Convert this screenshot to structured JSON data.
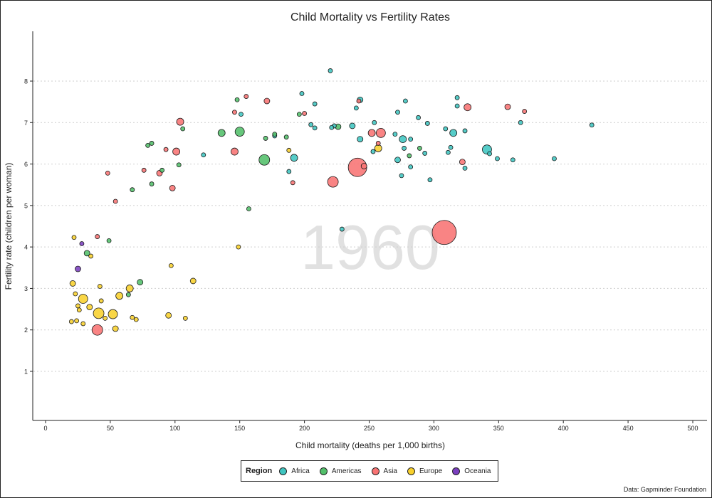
{
  "chart_data": {
    "type": "scatter",
    "title": "Child Mortality vs Fertility Rates",
    "xlabel": "Child mortality (deaths per 1,000 births)",
    "ylabel": "Fertility rate (children per woman)",
    "xlim": [
      -10,
      510
    ],
    "ylim": [
      0,
      9.3
    ],
    "xticks": [
      0,
      50,
      100,
      150,
      200,
      250,
      300,
      350,
      400,
      450,
      500
    ],
    "yticks": [
      1,
      2,
      3,
      4,
      5,
      6,
      7,
      8
    ],
    "grid": "horizontal dotted",
    "year_label": "1960",
    "size_encoding": "population (relative)",
    "legend": {
      "title": "Region",
      "position": "bottom",
      "entries": [
        {
          "name": "Africa",
          "color": "#3fc5c0"
        },
        {
          "name": "Americas",
          "color": "#52bf6a"
        },
        {
          "name": "Asia",
          "color": "#f87373"
        },
        {
          "name": "Europe",
          "color": "#f8d02c"
        },
        {
          "name": "Oceania",
          "color": "#7a3fbe"
        }
      ]
    },
    "source_note": "Data: Gapminder Foundation",
    "series": [
      {
        "name": "Africa",
        "color": "#3fc5c0",
        "points": [
          {
            "x": 220,
            "y": 8.25,
            "s": 1
          },
          {
            "x": 198,
            "y": 7.7,
            "s": 1
          },
          {
            "x": 318,
            "y": 7.6,
            "s": 1
          },
          {
            "x": 243,
            "y": 7.55,
            "s": 2
          },
          {
            "x": 278,
            "y": 7.52,
            "s": 1
          },
          {
            "x": 208,
            "y": 7.45,
            "s": 1
          },
          {
            "x": 318,
            "y": 7.4,
            "s": 1
          },
          {
            "x": 240,
            "y": 7.35,
            "s": 1
          },
          {
            "x": 272,
            "y": 7.25,
            "s": 1
          },
          {
            "x": 151,
            "y": 7.2,
            "s": 1
          },
          {
            "x": 288,
            "y": 7.12,
            "s": 1
          },
          {
            "x": 254,
            "y": 7.0,
            "s": 1
          },
          {
            "x": 367,
            "y": 7.0,
            "s": 1
          },
          {
            "x": 295,
            "y": 6.98,
            "s": 1
          },
          {
            "x": 205,
            "y": 6.95,
            "s": 1
          },
          {
            "x": 422,
            "y": 6.94,
            "s": 1
          },
          {
            "x": 237,
            "y": 6.92,
            "s": 2
          },
          {
            "x": 223,
            "y": 6.92,
            "s": 1
          },
          {
            "x": 221,
            "y": 6.88,
            "s": 1
          },
          {
            "x": 208,
            "y": 6.87,
            "s": 1
          },
          {
            "x": 309,
            "y": 6.85,
            "s": 1
          },
          {
            "x": 324,
            "y": 6.8,
            "s": 1
          },
          {
            "x": 315,
            "y": 6.75,
            "s": 3
          },
          {
            "x": 270,
            "y": 6.72,
            "s": 1
          },
          {
            "x": 177,
            "y": 6.68,
            "s": 1
          },
          {
            "x": 243,
            "y": 6.6,
            "s": 2
          },
          {
            "x": 276,
            "y": 6.6,
            "s": 3
          },
          {
            "x": 282,
            "y": 6.6,
            "s": 1
          },
          {
            "x": 313,
            "y": 6.4,
            "s": 1
          },
          {
            "x": 341,
            "y": 6.35,
            "s": 4
          },
          {
            "x": 277,
            "y": 6.38,
            "s": 1
          },
          {
            "x": 253,
            "y": 6.3,
            "s": 1
          },
          {
            "x": 311,
            "y": 6.28,
            "s": 1
          },
          {
            "x": 293,
            "y": 6.26,
            "s": 1
          },
          {
            "x": 343,
            "y": 6.25,
            "s": 1
          },
          {
            "x": 122,
            "y": 6.22,
            "s": 1
          },
          {
            "x": 192,
            "y": 6.15,
            "s": 3
          },
          {
            "x": 349,
            "y": 6.13,
            "s": 1
          },
          {
            "x": 393,
            "y": 6.13,
            "s": 1
          },
          {
            "x": 361,
            "y": 6.1,
            "s": 1
          },
          {
            "x": 272,
            "y": 6.1,
            "s": 2
          },
          {
            "x": 282,
            "y": 5.93,
            "s": 1
          },
          {
            "x": 324,
            "y": 5.9,
            "s": 1
          },
          {
            "x": 188,
            "y": 5.82,
            "s": 1
          },
          {
            "x": 275,
            "y": 5.72,
            "s": 1
          },
          {
            "x": 297,
            "y": 5.62,
            "s": 1
          },
          {
            "x": 229,
            "y": 4.43,
            "s": 1
          }
        ]
      },
      {
        "name": "Americas",
        "color": "#52bf6a",
        "points": [
          {
            "x": 148,
            "y": 7.55,
            "s": 1
          },
          {
            "x": 196,
            "y": 7.2,
            "s": 1
          },
          {
            "x": 150,
            "y": 6.78,
            "s": 4
          },
          {
            "x": 136,
            "y": 6.75,
            "s": 3
          },
          {
            "x": 226,
            "y": 6.9,
            "s": 2
          },
          {
            "x": 106,
            "y": 6.85,
            "s": 1
          },
          {
            "x": 177,
            "y": 6.72,
            "s": 1
          },
          {
            "x": 186,
            "y": 6.65,
            "s": 1
          },
          {
            "x": 170,
            "y": 6.62,
            "s": 1
          },
          {
            "x": 82,
            "y": 6.5,
            "s": 1
          },
          {
            "x": 79,
            "y": 6.45,
            "s": 1
          },
          {
            "x": 281,
            "y": 6.2,
            "s": 1
          },
          {
            "x": 169,
            "y": 6.1,
            "s": 5
          },
          {
            "x": 90,
            "y": 5.85,
            "s": 1
          },
          {
            "x": 82,
            "y": 5.52,
            "s": 1
          },
          {
            "x": 67,
            "y": 5.38,
            "s": 1
          },
          {
            "x": 157,
            "y": 4.92,
            "s": 1
          },
          {
            "x": 49,
            "y": 4.15,
            "s": 1
          },
          {
            "x": 32,
            "y": 3.85,
            "s": 2
          },
          {
            "x": 73,
            "y": 3.15,
            "s": 2
          },
          {
            "x": 64,
            "y": 2.85,
            "s": 1
          },
          {
            "x": 289,
            "y": 6.38,
            "s": 1
          },
          {
            "x": 103,
            "y": 5.98,
            "s": 1
          }
        ]
      },
      {
        "name": "Asia",
        "color": "#f87373",
        "points": [
          {
            "x": 155,
            "y": 7.63,
            "s": 1
          },
          {
            "x": 171,
            "y": 7.52,
            "s": 2
          },
          {
            "x": 242,
            "y": 7.52,
            "s": 1
          },
          {
            "x": 357,
            "y": 7.38,
            "s": 2
          },
          {
            "x": 326,
            "y": 7.37,
            "s": 3
          },
          {
            "x": 370,
            "y": 7.27,
            "s": 1
          },
          {
            "x": 146,
            "y": 7.25,
            "s": 1
          },
          {
            "x": 200,
            "y": 7.22,
            "s": 1
          },
          {
            "x": 104,
            "y": 7.02,
            "s": 3
          },
          {
            "x": 259,
            "y": 6.75,
            "s": 4
          },
          {
            "x": 252,
            "y": 6.75,
            "s": 3
          },
          {
            "x": 257,
            "y": 6.5,
            "s": 1
          },
          {
            "x": 93,
            "y": 6.35,
            "s": 1
          },
          {
            "x": 101,
            "y": 6.3,
            "s": 3
          },
          {
            "x": 146,
            "y": 6.3,
            "s": 3
          },
          {
            "x": 322,
            "y": 6.05,
            "s": 2
          },
          {
            "x": 246,
            "y": 5.95,
            "s": 2
          },
          {
            "x": 241,
            "y": 5.92,
            "s": 9
          },
          {
            "x": 76,
            "y": 5.85,
            "s": 1
          },
          {
            "x": 48,
            "y": 5.78,
            "s": 1
          },
          {
            "x": 88,
            "y": 5.78,
            "s": 2
          },
          {
            "x": 222,
            "y": 5.57,
            "s": 5
          },
          {
            "x": 191,
            "y": 5.55,
            "s": 1
          },
          {
            "x": 98,
            "y": 5.42,
            "s": 2
          },
          {
            "x": 54,
            "y": 5.1,
            "s": 1
          },
          {
            "x": 308,
            "y": 4.35,
            "s": 10
          },
          {
            "x": 40,
            "y": 4.25,
            "s": 1
          },
          {
            "x": 40,
            "y": 2.0,
            "s": 5
          }
        ]
      },
      {
        "name": "Europe",
        "color": "#f8d02c",
        "points": [
          {
            "x": 257,
            "y": 6.38,
            "s": 3
          },
          {
            "x": 188,
            "y": 6.33,
            "s": 1
          },
          {
            "x": 149,
            "y": 4.0,
            "s": 1
          },
          {
            "x": 22,
            "y": 4.23,
            "s": 1
          },
          {
            "x": 35,
            "y": 3.78,
            "s": 1
          },
          {
            "x": 97,
            "y": 3.55,
            "s": 1
          },
          {
            "x": 114,
            "y": 3.18,
            "s": 2
          },
          {
            "x": 21,
            "y": 3.12,
            "s": 2
          },
          {
            "x": 42,
            "y": 3.05,
            "s": 1
          },
          {
            "x": 65,
            "y": 3.0,
            "s": 3
          },
          {
            "x": 23,
            "y": 2.87,
            "s": 1
          },
          {
            "x": 57,
            "y": 2.82,
            "s": 3
          },
          {
            "x": 29,
            "y": 2.75,
            "s": 4
          },
          {
            "x": 43,
            "y": 2.7,
            "s": 1
          },
          {
            "x": 25,
            "y": 2.58,
            "s": 1
          },
          {
            "x": 34,
            "y": 2.55,
            "s": 2
          },
          {
            "x": 26,
            "y": 2.48,
            "s": 1
          },
          {
            "x": 41,
            "y": 2.4,
            "s": 5
          },
          {
            "x": 52,
            "y": 2.38,
            "s": 4
          },
          {
            "x": 95,
            "y": 2.35,
            "s": 2
          },
          {
            "x": 67,
            "y": 2.3,
            "s": 1
          },
          {
            "x": 46,
            "y": 2.28,
            "s": 1
          },
          {
            "x": 108,
            "y": 2.28,
            "s": 1
          },
          {
            "x": 70,
            "y": 2.25,
            "s": 1
          },
          {
            "x": 20,
            "y": 2.2,
            "s": 1
          },
          {
            "x": 24,
            "y": 2.22,
            "s": 1
          },
          {
            "x": 29,
            "y": 2.15,
            "s": 1
          },
          {
            "x": 54,
            "y": 2.03,
            "s": 2
          }
        ]
      },
      {
        "name": "Oceania",
        "color": "#7a3fbe",
        "points": [
          {
            "x": 28,
            "y": 4.08,
            "s": 1
          },
          {
            "x": 25,
            "y": 3.47,
            "s": 2
          }
        ]
      }
    ]
  }
}
